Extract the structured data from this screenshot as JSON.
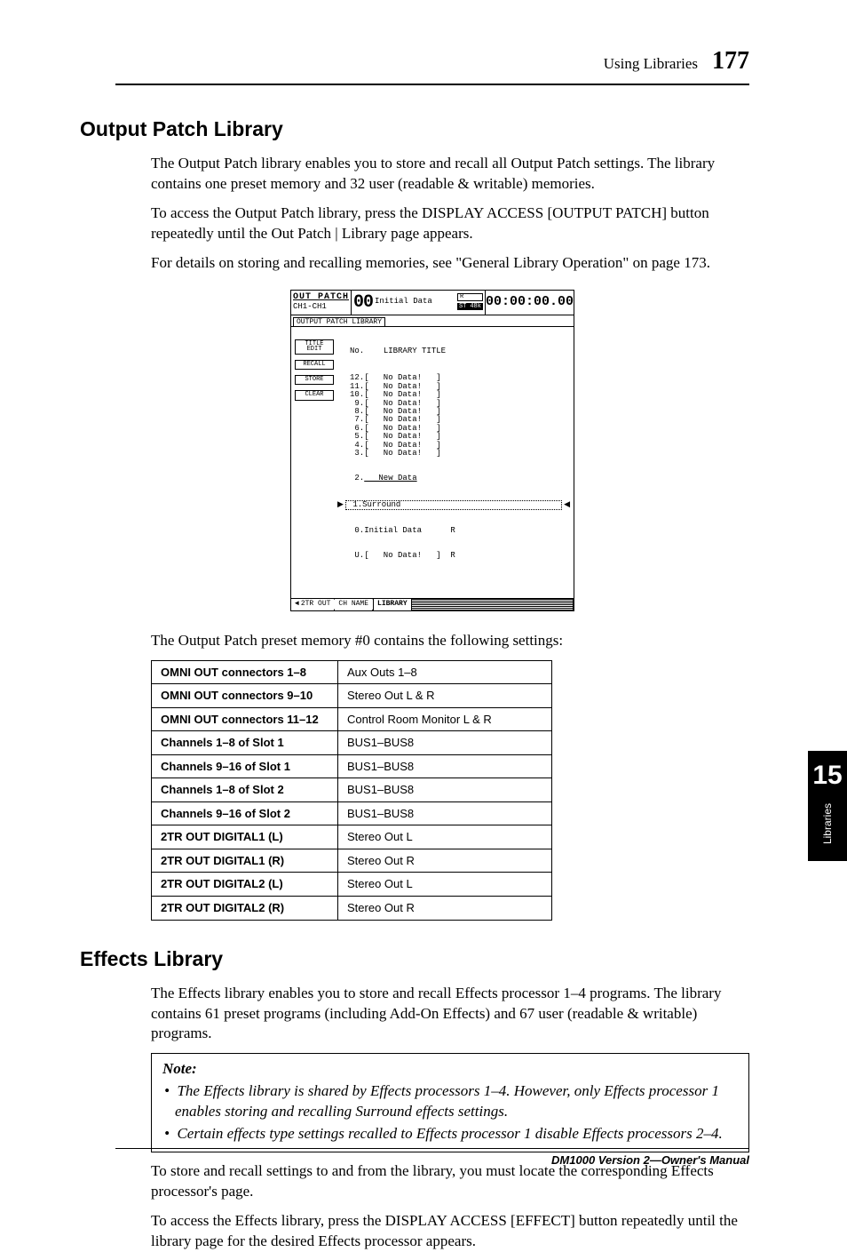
{
  "header": {
    "section": "Using Libraries",
    "page": "177"
  },
  "h1": "Output Patch Library",
  "p1": "The Output Patch library enables you to store and recall all Output Patch settings. The library contains one preset memory and 32 user (readable & writable) memories.",
  "p2": "To access the Output Patch library, press the DISPLAY ACCESS [OUTPUT PATCH] button repeatedly until the Out Patch | Library page appears.",
  "p3": "For details on storing and recalling memories, see \"General Library Operation\" on page 173.",
  "lcd": {
    "top_left_l1": "OUT PATCH",
    "top_left_l2": "CH1-CH1",
    "big": "00",
    "id": "Initial Data",
    "badge1": "ST",
    "badge2": "48k",
    "tc": "00:00:00.00",
    "tab": "OUTPUT PATCH LIBRARY",
    "col_no": "No.",
    "col_title": "LIBRARY TITLE",
    "btn1a": "TITLE",
    "btn1b": "EDIT",
    "btn2": "RECALL",
    "btn3": "STORE",
    "btn4": "CLEAR",
    "rows": [
      {
        "n": "12.",
        "t": "[   No Data!   ]"
      },
      {
        "n": "11.",
        "t": "[   No Data!   ]"
      },
      {
        "n": "10.",
        "t": "[   No Data!   ]"
      },
      {
        "n": " 9.",
        "t": "[   No Data!   ]"
      },
      {
        "n": " 8.",
        "t": "[   No Data!   ]"
      },
      {
        "n": " 7.",
        "t": "[   No Data!   ]"
      },
      {
        "n": " 6.",
        "t": "[   No Data!   ]"
      },
      {
        "n": " 5.",
        "t": "[   No Data!   ]"
      },
      {
        "n": " 4.",
        "t": "[   No Data!   ]"
      },
      {
        "n": " 3.",
        "t": "[   No Data!   ]"
      }
    ],
    "newrow_n": " 2.",
    "newrow_t": "   New Data",
    "sel_n": " 1.",
    "sel_t": "Surround",
    "r0_n": " 0.",
    "r0_t": "Initial Data      R",
    "ru_n": " U.",
    "ru_t": "[   No Data!   ]  R",
    "bt1": "2TR OUT",
    "bt2": "CH NAME",
    "bt3": "LIBRARY"
  },
  "p4": "The Output Patch preset memory #0 contains the following settings:",
  "table": [
    [
      "OMNI OUT connectors 1–8",
      "Aux Outs 1–8"
    ],
    [
      "OMNI OUT connectors 9–10",
      "Stereo Out L & R"
    ],
    [
      "OMNI OUT connectors 11–12",
      "Control Room Monitor L & R"
    ],
    [
      "Channels 1–8 of Slot 1",
      "BUS1–BUS8"
    ],
    [
      "Channels 9–16 of Slot 1",
      "BUS1–BUS8"
    ],
    [
      "Channels 1–8 of Slot 2",
      "BUS1–BUS8"
    ],
    [
      "Channels 9–16 of Slot 2",
      "BUS1–BUS8"
    ],
    [
      "2TR OUT DIGITAL1 (L)",
      "Stereo Out L"
    ],
    [
      "2TR OUT DIGITAL1 (R)",
      "Stereo Out R"
    ],
    [
      "2TR OUT DIGITAL2 (L)",
      "Stereo Out L"
    ],
    [
      "2TR OUT DIGITAL2 (R)",
      "Stereo Out R"
    ]
  ],
  "h2": "Effects Library",
  "p5": "The Effects library enables you to store and recall Effects processor 1–4 programs. The library contains 61 preset programs (including Add-On Effects) and 67 user (readable & writable) programs.",
  "note_title": "Note:",
  "note1": "The Effects library is shared by Effects processors 1–4. However, only Effects processor 1 enables storing and recalling Surround effects settings.",
  "note2": "Certain effects type settings recalled to Effects processor 1 disable Effects processors 2–4.",
  "p6": "To store and recall settings to and from the library, you must locate the corresponding Effects processor's page.",
  "p7": "To access the Effects library, press the DISPLAY ACCESS [EFFECT] button repeatedly until the library page for the desired Effects processor appears.",
  "side": {
    "num": "15",
    "txt": "Libraries"
  },
  "footer": "DM1000 Version 2—Owner's Manual"
}
